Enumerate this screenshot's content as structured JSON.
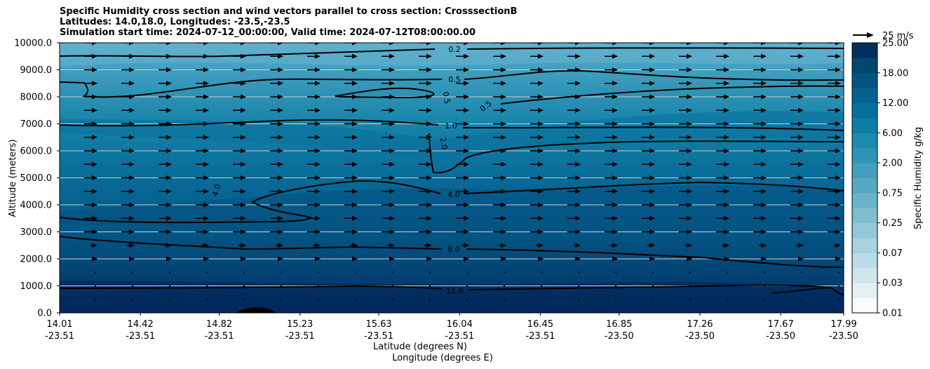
{
  "title_lines": [
    "Specific Humidity cross section and wind vectors parallel to cross section: CrosssectionB",
    "Latitudes: 14.0,18.0, Longitudes: -23.5,-23.5",
    "Simulation start time: 2024-07-12_00:00:00, Valid time: 2024-07-12T08:00:00.00"
  ],
  "chart_data": {
    "type": "contourf",
    "title": "Specific Humidity cross section and wind vectors parallel to cross section: CrosssectionB",
    "ylabel": "Altitude (meters)",
    "xlabel_lat": "Latitude (degrees N)",
    "xlabel_lon": "Longitude (degrees E)",
    "ylim": [
      0,
      10000
    ],
    "xlim": [
      14.01,
      17.99
    ],
    "yticks": [
      "0.0",
      "1000.0",
      "2000.0",
      "3000.0",
      "4000.0",
      "5000.0",
      "6000.0",
      "7000.0",
      "8000.0",
      "9000.0",
      "10000.0"
    ],
    "ytick_values": [
      0,
      1000,
      2000,
      3000,
      4000,
      5000,
      6000,
      7000,
      8000,
      9000,
      10000
    ],
    "xticks_lat": [
      "14.01",
      "14.42",
      "14.82",
      "15.23",
      "15.63",
      "16.04",
      "16.45",
      "16.85",
      "17.26",
      "17.67",
      "17.99"
    ],
    "xticks_lon": [
      "-23.51",
      "-23.51",
      "-23.51",
      "-23.51",
      "-23.51",
      "-23.51",
      "-23.51",
      "-23.50",
      "-23.50",
      "-23.50",
      "-23.50"
    ],
    "xtick_values": [
      14.01,
      14.42,
      14.82,
      15.23,
      15.63,
      16.04,
      16.45,
      16.85,
      17.26,
      17.67,
      17.99
    ],
    "colorbar": {
      "label": "Specific Humidity g/kg",
      "tick_labels": [
        "0.01",
        "0.03",
        "0.07",
        "0.25",
        "0.75",
        "2.00",
        "6.00",
        "12.00",
        "18.00",
        "25.00"
      ],
      "tick_levels": [
        0,
        2,
        4,
        6,
        8,
        10,
        12,
        14,
        16,
        18
      ],
      "n_levels": 18,
      "colors": [
        "#f7fbfd",
        "#e3f0f4",
        "#cfe6ed",
        "#bbdce6",
        "#a7d2df",
        "#93c8d8",
        "#7fbed1",
        "#6bb3ca",
        "#57a9c3",
        "#439fbc",
        "#2f94b5",
        "#1b8aae",
        "#0b7fa6",
        "#06709a",
        "#05628e",
        "#045482",
        "#03466f",
        "#022f5e"
      ]
    },
    "contour_labels": [
      "0.2",
      "0.5",
      "0.5",
      "0.5",
      "1.0",
      "2.0",
      "4.0",
      "4.0",
      "8.0",
      "12.0"
    ],
    "quiver_key": "25 m/s",
    "terrain": "small black hill near lat 15.0"
  }
}
